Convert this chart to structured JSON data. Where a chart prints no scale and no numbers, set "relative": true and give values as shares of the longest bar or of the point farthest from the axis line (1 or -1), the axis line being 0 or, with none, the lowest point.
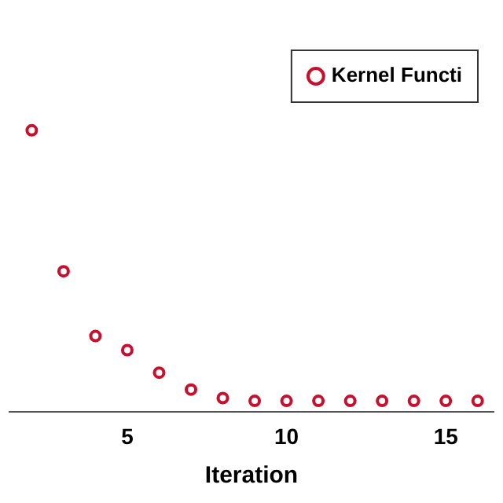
{
  "chart_data": {
    "type": "scatter",
    "xlabel": "Iteration",
    "relative": true,
    "marker": "circle",
    "legend": "top right",
    "grid": false,
    "xlim": [
      1.3,
      16.5
    ],
    "xticks": [
      5,
      10,
      15
    ],
    "series": [
      {
        "name": "Kernel Functi",
        "color": "#c8102e",
        "x": [
          2,
          3,
          4,
          5,
          6,
          7,
          8,
          9,
          10,
          11,
          12,
          13,
          14,
          15,
          16
        ],
        "values": [
          1,
          0.5,
          0.27,
          0.22,
          0.14,
          0.08,
          0.05,
          0.04,
          0.04,
          0.04,
          0.04,
          0.04,
          0.04,
          0.04,
          0.04
        ]
      }
    ]
  }
}
